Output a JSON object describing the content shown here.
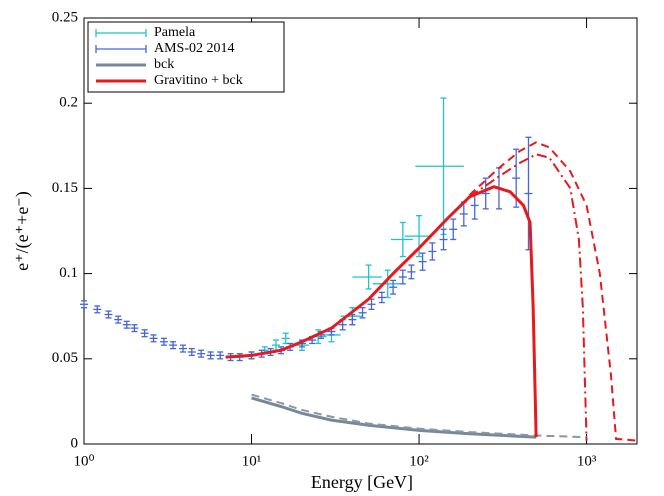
{
  "chart_data": {
    "type": "errorbar-line",
    "x_label": "Energy [GeV]",
    "y_label": "e⁺/(e⁺+e⁻)",
    "xscale": "log",
    "xlim": [
      1,
      2000
    ],
    "xticks": [
      {
        "value": 1,
        "label": "10⁰"
      },
      {
        "value": 10,
        "label": "10¹"
      },
      {
        "value": 100,
        "label": "10²"
      },
      {
        "value": 1000,
        "label": "10³"
      }
    ],
    "ylim": [
      0,
      0.25
    ],
    "yticks": [
      0,
      0.05,
      0.1,
      0.15,
      0.2,
      0.25
    ],
    "legend": "upper left",
    "series": [
      {
        "name": "Pamela",
        "type": "errorbar",
        "color": "#1fc3cc",
        "x": [
          10,
          12,
          14,
          16,
          20,
          25,
          30,
          40,
          50,
          65,
          80,
          100,
          140
        ],
        "values": [
          0.052,
          0.055,
          0.058,
          0.062,
          0.058,
          0.063,
          0.064,
          0.075,
          0.098,
          0.094,
          0.12,
          0.122,
          0.163
        ],
        "y_err": [
          0.002,
          0.002,
          0.003,
          0.003,
          0.003,
          0.004,
          0.004,
          0.005,
          0.007,
          0.008,
          0.01,
          0.012,
          0.04
        ],
        "x_err": [
          null,
          null,
          null,
          null,
          2,
          3,
          4,
          6,
          10,
          12,
          12,
          18,
          45
        ]
      },
      {
        "name": "AMS-02 2014",
        "type": "errorbar",
        "color": "#4466dd",
        "x": [
          1,
          1.2,
          1.4,
          1.6,
          1.8,
          2,
          2.3,
          2.6,
          3,
          3.4,
          3.9,
          4.4,
          5,
          5.7,
          6.5,
          7.5,
          8.5,
          10,
          11.5,
          13,
          15,
          17,
          20,
          23,
          26,
          30,
          35,
          40,
          46,
          52,
          60,
          70,
          80,
          90,
          105,
          120,
          140,
          160,
          185,
          215,
          250,
          300,
          380,
          450
        ],
        "values": [
          0.082,
          0.079,
          0.076,
          0.073,
          0.07,
          0.068,
          0.065,
          0.062,
          0.06,
          0.058,
          0.056,
          0.054,
          0.053,
          0.052,
          0.052,
          0.051,
          0.051,
          0.052,
          0.053,
          0.054,
          0.055,
          0.057,
          0.059,
          0.061,
          0.064,
          0.066,
          0.07,
          0.073,
          0.077,
          0.082,
          0.086,
          0.092,
          0.098,
          0.101,
          0.107,
          0.113,
          0.12,
          0.126,
          0.135,
          0.14,
          0.147,
          0.15,
          0.156,
          0.147
        ],
        "y_err": [
          0.002,
          0.002,
          0.002,
          0.002,
          0.002,
          0.002,
          0.002,
          0.002,
          0.002,
          0.002,
          0.002,
          0.002,
          0.002,
          0.002,
          0.002,
          0.002,
          0.002,
          0.002,
          0.002,
          0.002,
          0.002,
          0.002,
          0.002,
          0.002,
          0.002,
          0.002,
          0.003,
          0.003,
          0.003,
          0.003,
          0.003,
          0.004,
          0.004,
          0.004,
          0.005,
          0.005,
          0.006,
          0.006,
          0.007,
          0.008,
          0.009,
          0.012,
          0.017,
          0.033
        ]
      },
      {
        "name": "bck",
        "type": "line",
        "color": "#778899",
        "width": 3,
        "dash": "solid",
        "x": [
          10,
          15,
          20,
          30,
          50,
          100,
          200,
          500
        ],
        "values": [
          0.027,
          0.022,
          0.018,
          0.014,
          0.011,
          0.008,
          0.006,
          0.004
        ]
      },
      {
        "type": "line",
        "color": "#8a97a5",
        "width": 2,
        "dash": "dashed",
        "x": [
          10,
          15,
          20,
          30,
          50,
          100,
          200,
          500,
          1000
        ],
        "values": [
          0.029,
          0.024,
          0.02,
          0.016,
          0.012,
          0.009,
          0.007,
          0.005,
          0.004
        ]
      },
      {
        "name": "Gravitino + bck",
        "type": "line",
        "color": "#e41a1c",
        "width": 3,
        "dash": "solid",
        "x": [
          7,
          10,
          15,
          20,
          30,
          50,
          70,
          100,
          150,
          200,
          280,
          350,
          420,
          460,
          480,
          500
        ],
        "values": [
          0.051,
          0.052,
          0.055,
          0.06,
          0.068,
          0.085,
          0.1,
          0.115,
          0.133,
          0.145,
          0.151,
          0.148,
          0.14,
          0.13,
          0.08,
          0.004
        ]
      },
      {
        "type": "line",
        "color": "#e41a1c",
        "width": 2,
        "dash": "dashed",
        "x": [
          200,
          300,
          400,
          500,
          600,
          800,
          1000,
          1200,
          1400,
          1500,
          2000
        ],
        "values": [
          0.146,
          0.162,
          0.172,
          0.177,
          0.174,
          0.16,
          0.14,
          0.1,
          0.04,
          0.003,
          0.002
        ]
      },
      {
        "type": "line",
        "color": "#e41a1c",
        "width": 2,
        "dash": "dashdot",
        "x": [
          200,
          300,
          400,
          500,
          600,
          800,
          900,
          950,
          1000
        ],
        "values": [
          0.145,
          0.157,
          0.165,
          0.17,
          0.168,
          0.15,
          0.12,
          0.08,
          0.002
        ]
      }
    ]
  }
}
